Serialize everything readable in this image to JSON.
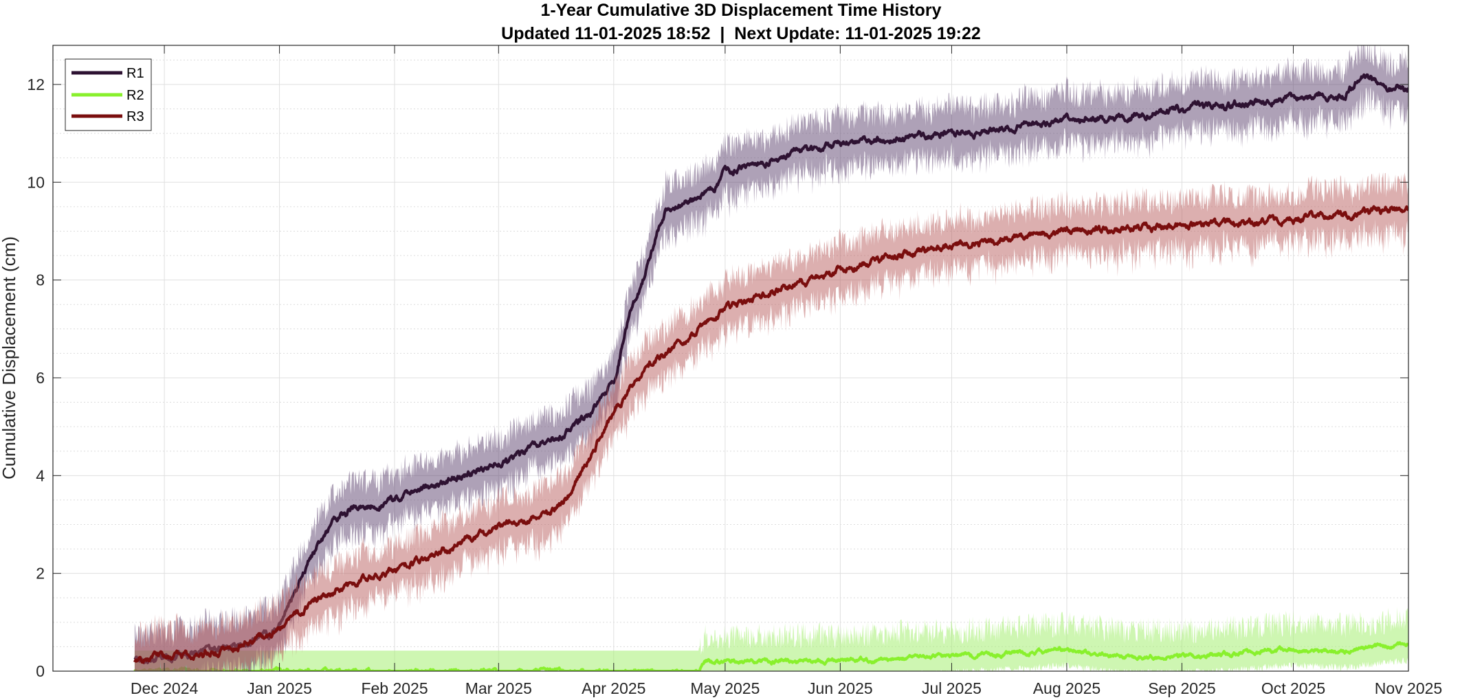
{
  "chart_data": {
    "type": "line",
    "title": "1-Year Cumulative 3D Displacement Time History",
    "subtitle": "Updated 11-01-2025 18:52  |  Next Update: 11-01-2025 19:22",
    "xlabel": "",
    "ylabel": "Cumulative Displacement (cm)",
    "xlim": [
      "2024-11-01",
      "2025-11-01"
    ],
    "ylim": [
      0,
      12.8
    ],
    "x_ticks": [
      {
        "date": "2024-12-01",
        "label": "Dec 2024"
      },
      {
        "date": "2025-01-01",
        "label": "Jan 2025"
      },
      {
        "date": "2025-02-01",
        "label": "Feb 2025"
      },
      {
        "date": "2025-03-01",
        "label": "Mar 2025"
      },
      {
        "date": "2025-04-01",
        "label": "Apr 2025"
      },
      {
        "date": "2025-05-01",
        "label": "May 2025"
      },
      {
        "date": "2025-06-01",
        "label": "Jun 2025"
      },
      {
        "date": "2025-07-01",
        "label": "Jul 2025"
      },
      {
        "date": "2025-08-01",
        "label": "Aug 2025"
      },
      {
        "date": "2025-09-01",
        "label": "Sep 2025"
      },
      {
        "date": "2025-10-01",
        "label": "Oct 2025"
      },
      {
        "date": "2025-11-01",
        "label": "Nov 2025"
      }
    ],
    "y_ticks": [
      0,
      2,
      4,
      6,
      8,
      10,
      12
    ],
    "grid": true,
    "minor_grid": true,
    "legend": {
      "placement": "top-left",
      "entries": [
        "R1",
        "R2",
        "R3"
      ]
    },
    "series": [
      {
        "name": "R1",
        "color": "#2e1232",
        "band_color": "#5e4470",
        "points": [
          [
            "2024-11-23",
            0.3
          ],
          [
            "2024-12-01",
            0.3
          ],
          [
            "2024-12-10",
            0.4
          ],
          [
            "2024-12-20",
            0.5
          ],
          [
            "2024-12-31",
            0.8
          ],
          [
            "2025-01-05",
            1.6
          ],
          [
            "2025-01-10",
            2.4
          ],
          [
            "2025-01-15",
            3.0
          ],
          [
            "2025-01-20",
            3.3
          ],
          [
            "2025-02-01",
            3.5
          ],
          [
            "2025-02-15",
            3.9
          ],
          [
            "2025-03-01",
            4.2
          ],
          [
            "2025-03-15",
            4.7
          ],
          [
            "2025-03-25",
            5.2
          ],
          [
            "2025-04-01",
            6.0
          ],
          [
            "2025-04-05",
            7.2
          ],
          [
            "2025-04-10",
            8.3
          ],
          [
            "2025-04-15",
            9.5
          ],
          [
            "2025-04-22",
            9.6
          ],
          [
            "2025-04-28",
            9.9
          ],
          [
            "2025-05-01",
            10.2
          ],
          [
            "2025-05-15",
            10.5
          ],
          [
            "2025-06-01",
            10.8
          ],
          [
            "2025-06-15",
            10.9
          ],
          [
            "2025-07-01",
            11.0
          ],
          [
            "2025-07-15",
            11.1
          ],
          [
            "2025-08-01",
            11.3
          ],
          [
            "2025-08-15",
            11.3
          ],
          [
            "2025-09-01",
            11.5
          ],
          [
            "2025-09-15",
            11.6
          ],
          [
            "2025-10-01",
            11.7
          ],
          [
            "2025-10-15",
            11.8
          ],
          [
            "2025-10-20",
            12.2
          ],
          [
            "2025-10-25",
            11.9
          ],
          [
            "2025-11-01",
            11.9
          ]
        ]
      },
      {
        "name": "R2",
        "color": "#89f02d",
        "band_color": "#a6ee72",
        "points": [
          [
            "2024-11-23",
            0.0
          ],
          [
            "2025-04-24",
            0.0
          ],
          [
            "2025-04-26",
            0.2
          ],
          [
            "2025-05-15",
            0.2
          ],
          [
            "2025-06-01",
            0.2
          ],
          [
            "2025-06-15",
            0.25
          ],
          [
            "2025-07-01",
            0.3
          ],
          [
            "2025-07-15",
            0.35
          ],
          [
            "2025-08-01",
            0.45
          ],
          [
            "2025-08-15",
            0.3
          ],
          [
            "2025-09-01",
            0.3
          ],
          [
            "2025-09-15",
            0.35
          ],
          [
            "2025-10-01",
            0.45
          ],
          [
            "2025-10-15",
            0.4
          ],
          [
            "2025-11-01",
            0.55
          ]
        ]
      },
      {
        "name": "R3",
        "color": "#7a0e0e",
        "band_color": "#b96060",
        "points": [
          [
            "2024-11-23",
            0.2
          ],
          [
            "2024-12-01",
            0.3
          ],
          [
            "2024-12-15",
            0.4
          ],
          [
            "2024-12-31",
            0.8
          ],
          [
            "2025-01-10",
            1.4
          ],
          [
            "2025-01-20",
            1.8
          ],
          [
            "2025-02-01",
            2.1
          ],
          [
            "2025-02-15",
            2.5
          ],
          [
            "2025-03-01",
            2.9
          ],
          [
            "2025-03-15",
            3.3
          ],
          [
            "2025-03-20",
            3.6
          ],
          [
            "2025-03-25",
            4.3
          ],
          [
            "2025-04-01",
            5.3
          ],
          [
            "2025-04-10",
            6.2
          ],
          [
            "2025-04-20",
            6.8
          ],
          [
            "2025-05-01",
            7.4
          ],
          [
            "2025-05-15",
            7.8
          ],
          [
            "2025-06-01",
            8.2
          ],
          [
            "2025-06-15",
            8.5
          ],
          [
            "2025-07-01",
            8.7
          ],
          [
            "2025-07-15",
            8.85
          ],
          [
            "2025-08-01",
            9.0
          ],
          [
            "2025-08-15",
            9.05
          ],
          [
            "2025-09-01",
            9.1
          ],
          [
            "2025-09-15",
            9.15
          ],
          [
            "2025-10-01",
            9.25
          ],
          [
            "2025-10-15",
            9.35
          ],
          [
            "2025-11-01",
            9.45
          ]
        ]
      }
    ]
  }
}
